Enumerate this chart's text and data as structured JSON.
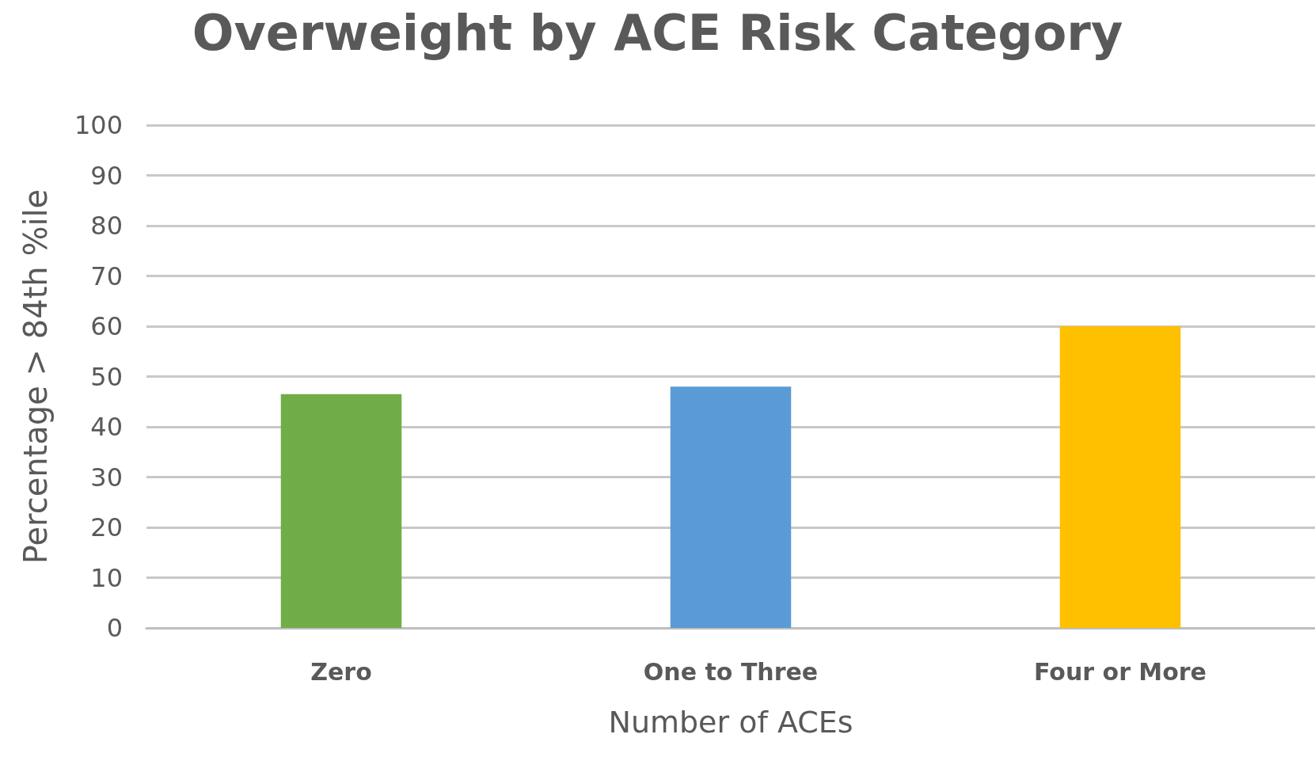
{
  "chart_data": {
    "type": "bar",
    "title": "Overweight by ACE Risk Category",
    "xlabel": "Number of ACEs",
    "ylabel": "Percentage > 84th %ile",
    "categories": [
      "Zero",
      "One to Three",
      "Four or More"
    ],
    "values": [
      46.5,
      48,
      60
    ],
    "colors": [
      "#70ad47",
      "#5b9bd5",
      "#ffc000"
    ],
    "ylim": [
      0,
      100
    ],
    "yticks": [
      0,
      10,
      20,
      30,
      40,
      50,
      60,
      70,
      80,
      90,
      100
    ],
    "grid": "y"
  }
}
